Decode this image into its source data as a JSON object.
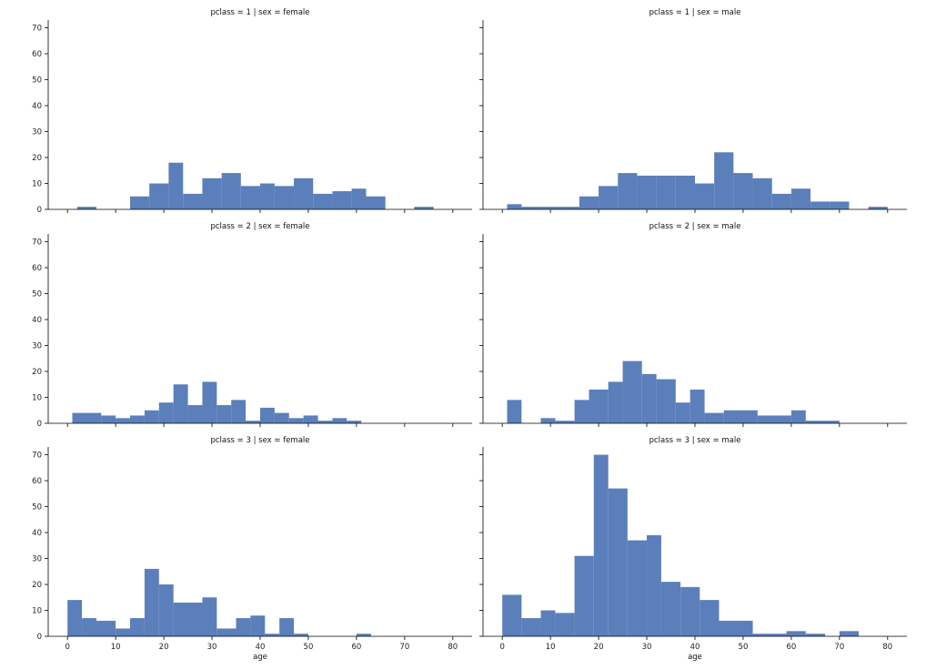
{
  "chart_data": {
    "type": "bar",
    "bar_color": "#5a7fbb",
    "bin_width": 4,
    "ylim": [
      0,
      73
    ],
    "xlim": [
      -4,
      84
    ],
    "yticks": [
      0,
      10,
      20,
      30,
      40,
      50,
      60,
      70
    ],
    "xticks": [
      0,
      10,
      20,
      30,
      40,
      50,
      60,
      70,
      80
    ],
    "xlabel": "age",
    "grid": false,
    "panels": [
      {
        "title": "pclass = 1 | sex = female",
        "bins": [
          {
            "x0": 2,
            "x1": 6,
            "y": 1
          },
          {
            "x0": 13,
            "x1": 17,
            "y": 5
          },
          {
            "x0": 17,
            "x1": 21,
            "y": 10
          },
          {
            "x0": 21,
            "x1": 24,
            "y": 18
          },
          {
            "x0": 24,
            "x1": 28,
            "y": 6
          },
          {
            "x0": 28,
            "x1": 32,
            "y": 12
          },
          {
            "x0": 32,
            "x1": 36,
            "y": 14
          },
          {
            "x0": 36,
            "x1": 40,
            "y": 9
          },
          {
            "x0": 40,
            "x1": 43,
            "y": 10
          },
          {
            "x0": 43,
            "x1": 47,
            "y": 9
          },
          {
            "x0": 47,
            "x1": 51,
            "y": 12
          },
          {
            "x0": 51,
            "x1": 55,
            "y": 6
          },
          {
            "x0": 55,
            "x1": 59,
            "y": 7
          },
          {
            "x0": 59,
            "x1": 62,
            "y": 8
          },
          {
            "x0": 62,
            "x1": 66,
            "y": 5
          },
          {
            "x0": 72,
            "x1": 76,
            "y": 1
          }
        ]
      },
      {
        "title": "pclass = 1 | sex = male",
        "bins": [
          {
            "x0": 1,
            "x1": 4,
            "y": 2
          },
          {
            "x0": 4,
            "x1": 8,
            "y": 1
          },
          {
            "x0": 8,
            "x1": 12,
            "y": 1
          },
          {
            "x0": 12,
            "x1": 16,
            "y": 1
          },
          {
            "x0": 16,
            "x1": 20,
            "y": 5
          },
          {
            "x0": 20,
            "x1": 24,
            "y": 9
          },
          {
            "x0": 24,
            "x1": 28,
            "y": 14
          },
          {
            "x0": 28,
            "x1": 32,
            "y": 13
          },
          {
            "x0": 32,
            "x1": 36,
            "y": 13
          },
          {
            "x0": 36,
            "x1": 40,
            "y": 13
          },
          {
            "x0": 40,
            "x1": 44,
            "y": 10
          },
          {
            "x0": 44,
            "x1": 48,
            "y": 22
          },
          {
            "x0": 48,
            "x1": 52,
            "y": 14
          },
          {
            "x0": 52,
            "x1": 56,
            "y": 12
          },
          {
            "x0": 56,
            "x1": 60,
            "y": 6
          },
          {
            "x0": 60,
            "x1": 64,
            "y": 8
          },
          {
            "x0": 64,
            "x1": 68,
            "y": 3
          },
          {
            "x0": 68,
            "x1": 72,
            "y": 3
          },
          {
            "x0": 76,
            "x1": 80,
            "y": 1
          }
        ]
      },
      {
        "title": "pclass = 2 | sex = female",
        "bins": [
          {
            "x0": 1,
            "x1": 7,
            "y": 4
          },
          {
            "x0": 7,
            "x1": 10,
            "y": 3
          },
          {
            "x0": 10,
            "x1": 13,
            "y": 2
          },
          {
            "x0": 13,
            "x1": 16,
            "y": 3
          },
          {
            "x0": 16,
            "x1": 19,
            "y": 5
          },
          {
            "x0": 19,
            "x1": 22,
            "y": 8
          },
          {
            "x0": 22,
            "x1": 25,
            "y": 15
          },
          {
            "x0": 25,
            "x1": 28,
            "y": 7
          },
          {
            "x0": 28,
            "x1": 31,
            "y": 16
          },
          {
            "x0": 31,
            "x1": 34,
            "y": 7
          },
          {
            "x0": 34,
            "x1": 37,
            "y": 9
          },
          {
            "x0": 37,
            "x1": 40,
            "y": 1
          },
          {
            "x0": 40,
            "x1": 43,
            "y": 6
          },
          {
            "x0": 43,
            "x1": 46,
            "y": 4
          },
          {
            "x0": 46,
            "x1": 49,
            "y": 2
          },
          {
            "x0": 49,
            "x1": 52,
            "y": 3
          },
          {
            "x0": 52,
            "x1": 55,
            "y": 1
          },
          {
            "x0": 55,
            "x1": 58,
            "y": 2
          },
          {
            "x0": 58,
            "x1": 61,
            "y": 1
          }
        ]
      },
      {
        "title": "pclass = 2 | sex = male",
        "bins": [
          {
            "x0": 1,
            "x1": 4,
            "y": 9
          },
          {
            "x0": 8,
            "x1": 11,
            "y": 2
          },
          {
            "x0": 11,
            "x1": 15,
            "y": 1
          },
          {
            "x0": 15,
            "x1": 18,
            "y": 9
          },
          {
            "x0": 18,
            "x1": 22,
            "y": 13
          },
          {
            "x0": 22,
            "x1": 25,
            "y": 16
          },
          {
            "x0": 25,
            "x1": 29,
            "y": 24
          },
          {
            "x0": 29,
            "x1": 32,
            "y": 19
          },
          {
            "x0": 32,
            "x1": 36,
            "y": 17
          },
          {
            "x0": 36,
            "x1": 39,
            "y": 8
          },
          {
            "x0": 39,
            "x1": 42,
            "y": 13
          },
          {
            "x0": 42,
            "x1": 46,
            "y": 4
          },
          {
            "x0": 46,
            "x1": 53,
            "y": 5
          },
          {
            "x0": 53,
            "x1": 60,
            "y": 3
          },
          {
            "x0": 60,
            "x1": 63,
            "y": 5
          },
          {
            "x0": 63,
            "x1": 70,
            "y": 1
          }
        ]
      },
      {
        "title": "pclass = 3 | sex = female",
        "bins": [
          {
            "x0": 0,
            "x1": 3,
            "y": 14
          },
          {
            "x0": 3,
            "x1": 6,
            "y": 7
          },
          {
            "x0": 6,
            "x1": 10,
            "y": 6
          },
          {
            "x0": 10,
            "x1": 13,
            "y": 3
          },
          {
            "x0": 13,
            "x1": 16,
            "y": 7
          },
          {
            "x0": 16,
            "x1": 19,
            "y": 26
          },
          {
            "x0": 19,
            "x1": 22,
            "y": 20
          },
          {
            "x0": 22,
            "x1": 28,
            "y": 13
          },
          {
            "x0": 28,
            "x1": 31,
            "y": 15
          },
          {
            "x0": 31,
            "x1": 35,
            "y": 3
          },
          {
            "x0": 35,
            "x1": 38,
            "y": 7
          },
          {
            "x0": 38,
            "x1": 41,
            "y": 8
          },
          {
            "x0": 41,
            "x1": 44,
            "y": 1
          },
          {
            "x0": 44,
            "x1": 47,
            "y": 7
          },
          {
            "x0": 47,
            "x1": 50,
            "y": 1
          },
          {
            "x0": 60,
            "x1": 63,
            "y": 1
          }
        ]
      },
      {
        "title": "pclass = 3 | sex = male",
        "bins": [
          {
            "x0": 0,
            "x1": 4,
            "y": 16
          },
          {
            "x0": 4,
            "x1": 8,
            "y": 7
          },
          {
            "x0": 8,
            "x1": 11,
            "y": 10
          },
          {
            "x0": 11,
            "x1": 15,
            "y": 9
          },
          {
            "x0": 15,
            "x1": 19,
            "y": 31
          },
          {
            "x0": 19,
            "x1": 22,
            "y": 70
          },
          {
            "x0": 22,
            "x1": 26,
            "y": 57
          },
          {
            "x0": 26,
            "x1": 30,
            "y": 37
          },
          {
            "x0": 30,
            "x1": 33,
            "y": 39
          },
          {
            "x0": 33,
            "x1": 37,
            "y": 21
          },
          {
            "x0": 37,
            "x1": 41,
            "y": 19
          },
          {
            "x0": 41,
            "x1": 45,
            "y": 14
          },
          {
            "x0": 45,
            "x1": 52,
            "y": 6
          },
          {
            "x0": 52,
            "x1": 59,
            "y": 1
          },
          {
            "x0": 59,
            "x1": 63,
            "y": 2
          },
          {
            "x0": 63,
            "x1": 67,
            "y": 1
          },
          {
            "x0": 70,
            "x1": 74,
            "y": 2
          }
        ]
      }
    ]
  }
}
